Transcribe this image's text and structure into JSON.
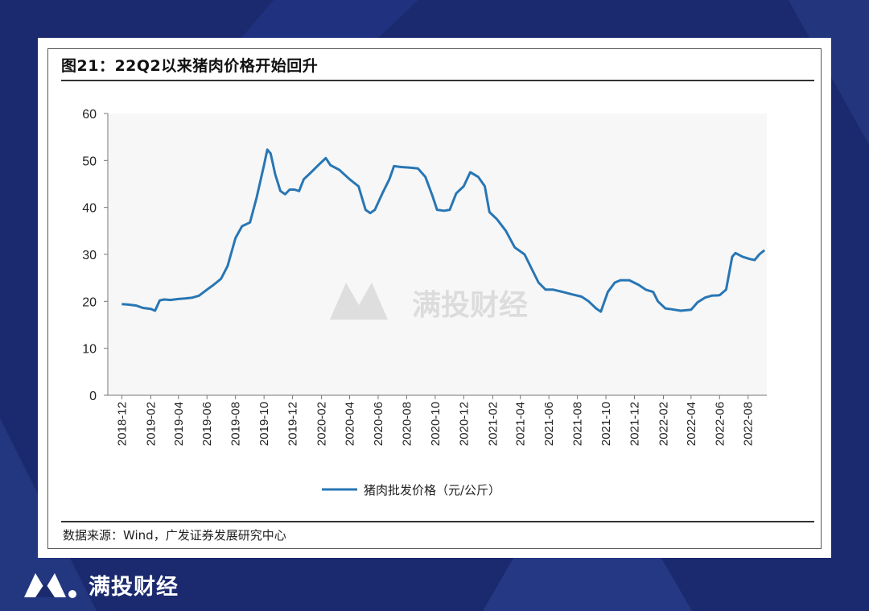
{
  "watermark_text": "满投财经",
  "brand": {
    "name": "满投财经"
  },
  "source_text": "数据来源：Wind，广发证券发展研究中心",
  "colors": {
    "line": "#2876b4",
    "background": "#1b2a6e",
    "plot_bg": "#f7f7f7"
  },
  "chart_data": {
    "type": "line",
    "title": "图21：22Q2以来猪肉价格开始回升",
    "xlabel": "",
    "ylabel": "",
    "ylim": [
      0,
      60
    ],
    "yticks": [
      0,
      10,
      20,
      30,
      40,
      50,
      60
    ],
    "x_tick_labels": [
      "2018-12",
      "2019-02",
      "2019-04",
      "2019-06",
      "2019-08",
      "2019-10",
      "2019-12",
      "2020-02",
      "2020-04",
      "2020-06",
      "2020-08",
      "2020-10",
      "2020-12",
      "2021-02",
      "2021-04",
      "2021-06",
      "2021-08",
      "2021-10",
      "2021-12",
      "2022-02",
      "2022-04",
      "2022-06",
      "2022-08"
    ],
    "legend_position": "bottom-center",
    "grid": false,
    "series": [
      {
        "name": "猪肉批发价格（元/公斤）",
        "color": "#2876b4",
        "points": [
          [
            "2018-12-01",
            19.4
          ],
          [
            "2018-12-15",
            19.3
          ],
          [
            "2019-01-01",
            19.1
          ],
          [
            "2019-01-15",
            18.6
          ],
          [
            "2019-02-01",
            18.4
          ],
          [
            "2019-02-10",
            18.0
          ],
          [
            "2019-02-20",
            20.2
          ],
          [
            "2019-03-01",
            20.4
          ],
          [
            "2019-03-15",
            20.3
          ],
          [
            "2019-04-01",
            20.5
          ],
          [
            "2019-04-15",
            20.6
          ],
          [
            "2019-05-01",
            20.8
          ],
          [
            "2019-05-15",
            21.2
          ],
          [
            "2019-06-01",
            22.5
          ],
          [
            "2019-06-15",
            23.5
          ],
          [
            "2019-07-01",
            24.8
          ],
          [
            "2019-07-15",
            27.5
          ],
          [
            "2019-08-01",
            33.5
          ],
          [
            "2019-08-15",
            36.0
          ],
          [
            "2019-09-01",
            36.8
          ],
          [
            "2019-09-15",
            42.0
          ],
          [
            "2019-10-01",
            49.0
          ],
          [
            "2019-10-08",
            52.3
          ],
          [
            "2019-10-15",
            51.5
          ],
          [
            "2019-10-25",
            47.0
          ],
          [
            "2019-11-05",
            43.5
          ],
          [
            "2019-11-15",
            42.8
          ],
          [
            "2019-11-25",
            43.8
          ],
          [
            "2019-12-05",
            43.8
          ],
          [
            "2019-12-15",
            43.5
          ],
          [
            "2019-12-25",
            46.0
          ],
          [
            "2020-01-10",
            47.5
          ],
          [
            "2020-01-25",
            49.0
          ],
          [
            "2020-02-10",
            50.5
          ],
          [
            "2020-02-20",
            49.0
          ],
          [
            "2020-03-10",
            48.0
          ],
          [
            "2020-04-01",
            46.0
          ],
          [
            "2020-04-20",
            44.5
          ],
          [
            "2020-05-05",
            39.5
          ],
          [
            "2020-05-15",
            38.8
          ],
          [
            "2020-05-25",
            39.5
          ],
          [
            "2020-06-10",
            43.0
          ],
          [
            "2020-06-25",
            46.0
          ],
          [
            "2020-07-05",
            48.8
          ],
          [
            "2020-07-20",
            48.6
          ],
          [
            "2020-08-05",
            48.5
          ],
          [
            "2020-08-25",
            48.3
          ],
          [
            "2020-09-10",
            46.5
          ],
          [
            "2020-09-25",
            42.5
          ],
          [
            "2020-10-05",
            39.5
          ],
          [
            "2020-10-20",
            39.3
          ],
          [
            "2020-11-01",
            39.5
          ],
          [
            "2020-11-15",
            43.0
          ],
          [
            "2020-12-01",
            44.5
          ],
          [
            "2020-12-15",
            47.5
          ],
          [
            "2021-01-01",
            46.5
          ],
          [
            "2021-01-15",
            44.5
          ],
          [
            "2021-01-25",
            39.0
          ],
          [
            "2021-02-10",
            37.5
          ],
          [
            "2021-03-01",
            35.0
          ],
          [
            "2021-03-20",
            31.5
          ],
          [
            "2021-04-10",
            30.0
          ],
          [
            "2021-04-25",
            27.0
          ],
          [
            "2021-05-10",
            24.0
          ],
          [
            "2021-05-25",
            22.5
          ],
          [
            "2021-06-10",
            22.5
          ],
          [
            "2021-07-01",
            22.0
          ],
          [
            "2021-07-20",
            21.5
          ],
          [
            "2021-08-10",
            21.0
          ],
          [
            "2021-08-25",
            20.0
          ],
          [
            "2021-09-10",
            18.5
          ],
          [
            "2021-09-20",
            17.8
          ],
          [
            "2021-10-05",
            22.0
          ],
          [
            "2021-10-20",
            24.0
          ],
          [
            "2021-11-01",
            24.5
          ],
          [
            "2021-11-20",
            24.5
          ],
          [
            "2021-12-10",
            23.5
          ],
          [
            "2021-12-25",
            22.5
          ],
          [
            "2022-01-10",
            22.0
          ],
          [
            "2022-01-20",
            20.0
          ],
          [
            "2022-02-05",
            18.5
          ],
          [
            "2022-02-20",
            18.3
          ],
          [
            "2022-03-10",
            18.0
          ],
          [
            "2022-04-01",
            18.2
          ],
          [
            "2022-04-15",
            19.8
          ],
          [
            "2022-05-01",
            20.8
          ],
          [
            "2022-05-15",
            21.2
          ],
          [
            "2022-06-01",
            21.3
          ],
          [
            "2022-06-15",
            22.5
          ],
          [
            "2022-06-28",
            29.5
          ],
          [
            "2022-07-05",
            30.3
          ],
          [
            "2022-07-20",
            29.5
          ],
          [
            "2022-08-05",
            29.0
          ],
          [
            "2022-08-15",
            28.8
          ],
          [
            "2022-08-25",
            30.0
          ],
          [
            "2022-09-05",
            30.9
          ]
        ]
      }
    ]
  }
}
